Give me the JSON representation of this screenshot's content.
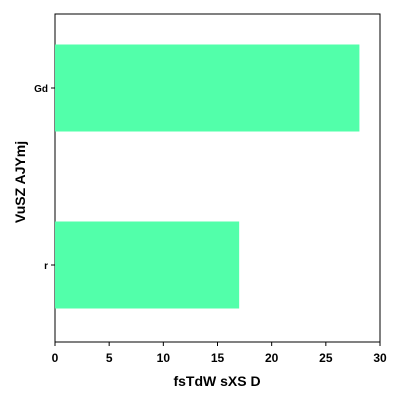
{
  "chart_data": {
    "type": "bar",
    "orientation": "horizontal",
    "categories": [
      "Gd",
      "r"
    ],
    "values": [
      28.1,
      17.0
    ],
    "xlabel": "fsTdW sXS D",
    "ylabel": "VuSZ AJYmj",
    "xlim": [
      0,
      30
    ],
    "xticks": [
      0,
      5,
      10,
      15,
      20,
      25,
      30
    ],
    "bar_color": "#52ffaa",
    "grid": false
  }
}
